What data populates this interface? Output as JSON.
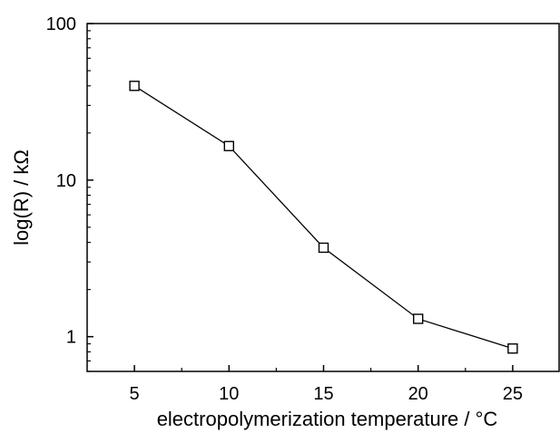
{
  "chart_data": {
    "type": "line",
    "title": "",
    "xlabel": "electropolymerization temperature / °C",
    "ylabel": "log(R) / kΩ",
    "xlim": [
      2.5,
      27.5
    ],
    "ylim": [
      0.6,
      100
    ],
    "yscale": "log",
    "grid": false,
    "legend": "none",
    "marker": "open-square",
    "x_ticks": [
      5,
      10,
      15,
      20,
      25
    ],
    "x_tick_labels": [
      "5",
      "10",
      "15",
      "20",
      "25"
    ],
    "y_ticks": [
      1,
      10,
      100
    ],
    "y_tick_labels": [
      "1",
      "10",
      "100"
    ],
    "series": [
      {
        "x": [
          5,
          10,
          15,
          20,
          25
        ],
        "y": [
          40,
          16.5,
          3.7,
          1.3,
          0.84
        ]
      }
    ],
    "color": "#000000"
  }
}
